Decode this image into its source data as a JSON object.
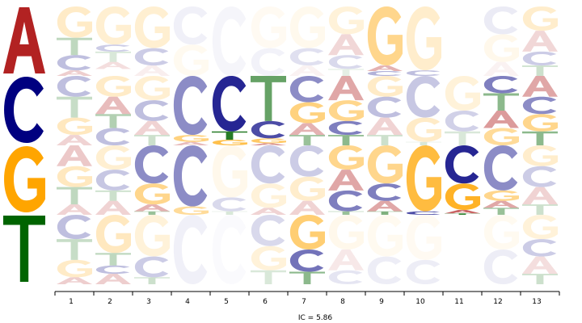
{
  "chart_data": {
    "type": "sequence-logo",
    "xlabel": "IC = 5.86",
    "alphabet": [
      "A",
      "C",
      "G",
      "T"
    ],
    "colors": {
      "A": "#b22222",
      "C": "#000080",
      "G": "#ffa500",
      "T": "#006400"
    },
    "row_letters": [
      "A",
      "C",
      "G",
      "T"
    ],
    "positions": [
      "1",
      "2",
      "3",
      "4",
      "5",
      "6",
      "7",
      "8",
      "9",
      "10",
      "11",
      "12",
      "13"
    ],
    "cells": {
      "A": [
        [
          [
            "G",
            0.45,
            0.22
          ],
          [
            "T",
            0.25,
            0.25
          ],
          [
            "C",
            0.22,
            0.25
          ],
          [
            "A",
            0.08,
            0.22
          ]
        ],
        [
          [
            "G",
            0.55,
            0.18
          ],
          [
            "C",
            0.1,
            0.2
          ],
          [
            "T",
            0.15,
            0.15
          ],
          [
            "A",
            0.1,
            0.15
          ]
        ],
        [
          [
            "G",
            0.6,
            0.18
          ],
          [
            "C",
            0.25,
            0.2
          ],
          [
            "A",
            0.15,
            0.08
          ]
        ],
        [
          [
            "C",
            0.55,
            0.06
          ],
          [
            "G",
            0.45,
            0.06
          ]
        ],
        [
          [
            "C",
            1.0,
            0.04
          ]
        ],
        [
          [
            "G",
            0.6,
            0.05
          ],
          [
            "C",
            0.4,
            0.05
          ]
        ],
        [
          [
            "G",
            0.6,
            0.07
          ],
          [
            "C",
            0.25,
            0.12
          ],
          [
            "A",
            0.15,
            0.06
          ]
        ],
        [
          [
            "G",
            0.4,
            0.15
          ],
          [
            "A",
            0.3,
            0.18
          ],
          [
            "C",
            0.2,
            0.15
          ],
          [
            "T",
            0.1,
            0.1
          ]
        ],
        [
          [
            "G",
            0.85,
            0.45
          ],
          [
            "A",
            0.08,
            0.35
          ],
          [
            "C",
            0.07,
            0.3
          ]
        ],
        [
          [
            "G",
            0.92,
            0.2
          ],
          [
            "C",
            0.08,
            0.25
          ]
        ],
        [],
        [
          [
            "C",
            0.4,
            0.08
          ],
          [
            "G",
            0.4,
            0.08
          ],
          [
            "A",
            0.2,
            0.06
          ]
        ],
        [
          [
            "G",
            0.35,
            0.2
          ],
          [
            "A",
            0.3,
            0.18
          ],
          [
            "C",
            0.2,
            0.2
          ],
          [
            "T",
            0.15,
            0.2
          ]
        ]
      ],
      "C": [
        [
          [
            "C",
            0.3,
            0.25
          ],
          [
            "T",
            0.3,
            0.22
          ],
          [
            "G",
            0.25,
            0.25
          ],
          [
            "A",
            0.15,
            0.2
          ]
        ],
        [
          [
            "G",
            0.3,
            0.22
          ],
          [
            "A",
            0.25,
            0.3
          ],
          [
            "T",
            0.2,
            0.3
          ],
          [
            "C",
            0.25,
            0.25
          ]
        ],
        [
          [
            "G",
            0.35,
            0.18
          ],
          [
            "C",
            0.3,
            0.25
          ],
          [
            "A",
            0.2,
            0.2
          ],
          [
            "T",
            0.15,
            0.2
          ]
        ],
        [
          [
            "C",
            0.85,
            0.45
          ],
          [
            "G",
            0.1,
            0.5
          ],
          [
            "A",
            0.05,
            0.3
          ]
        ],
        [
          [
            "C",
            0.8,
            0.85
          ],
          [
            "T",
            0.12,
            0.85
          ],
          [
            "G",
            0.08,
            0.7
          ]
        ],
        [
          [
            "T",
            0.65,
            0.6
          ],
          [
            "C",
            0.25,
            0.7
          ],
          [
            "G",
            0.07,
            0.6
          ],
          [
            "A",
            0.03,
            0.5
          ]
        ],
        [
          [
            "C",
            0.38,
            0.45
          ],
          [
            "G",
            0.3,
            0.5
          ],
          [
            "A",
            0.17,
            0.35
          ],
          [
            "T",
            0.15,
            0.4
          ]
        ],
        [
          [
            "A",
            0.35,
            0.4
          ],
          [
            "G",
            0.3,
            0.45
          ],
          [
            "C",
            0.2,
            0.5
          ],
          [
            "T",
            0.15,
            0.45
          ]
        ],
        [
          [
            "G",
            0.3,
            0.22
          ],
          [
            "C",
            0.3,
            0.25
          ],
          [
            "A",
            0.25,
            0.2
          ],
          [
            "T",
            0.15,
            0.2
          ]
        ],
        [
          [
            "C",
            0.6,
            0.22
          ],
          [
            "G",
            0.35,
            0.22
          ],
          [
            "T",
            0.05,
            0.15
          ]
        ],
        [
          [
            "G",
            0.5,
            0.15
          ],
          [
            "C",
            0.3,
            0.18
          ],
          [
            "T",
            0.2,
            0.15
          ]
        ],
        [
          [
            "C",
            0.25,
            0.5
          ],
          [
            "T",
            0.25,
            0.45
          ],
          [
            "A",
            0.25,
            0.45
          ],
          [
            "G",
            0.25,
            0.4
          ]
        ],
        [
          [
            "A",
            0.3,
            0.4
          ],
          [
            "C",
            0.25,
            0.45
          ],
          [
            "G",
            0.25,
            0.45
          ],
          [
            "T",
            0.2,
            0.45
          ]
        ]
      ],
      "G": [
        [
          [
            "A",
            0.3,
            0.25
          ],
          [
            "G",
            0.3,
            0.25
          ],
          [
            "T",
            0.25,
            0.25
          ],
          [
            "A",
            0.15,
            0.2
          ]
        ],
        [
          [
            "G",
            0.35,
            0.18
          ],
          [
            "C",
            0.3,
            0.22
          ],
          [
            "T",
            0.15,
            0.2
          ],
          [
            "A",
            0.2,
            0.2
          ]
        ],
        [
          [
            "C",
            0.55,
            0.45
          ],
          [
            "G",
            0.3,
            0.45
          ],
          [
            "A",
            0.1,
            0.35
          ],
          [
            "T",
            0.05,
            0.4
          ]
        ],
        [
          [
            "C",
            0.88,
            0.45
          ],
          [
            "G",
            0.12,
            0.4
          ]
        ],
        [
          [
            "G",
            0.75,
            0.08
          ],
          [
            "C",
            0.2,
            0.15
          ],
          [
            "T",
            0.05,
            0.15
          ]
        ],
        [
          [
            "C",
            0.55,
            0.2
          ],
          [
            "G",
            0.35,
            0.15
          ],
          [
            "A",
            0.1,
            0.2
          ]
        ],
        [
          [
            "C",
            0.45,
            0.2
          ],
          [
            "G",
            0.35,
            0.2
          ],
          [
            "A",
            0.2,
            0.2
          ]
        ],
        [
          [
            "G",
            0.35,
            0.45
          ],
          [
            "A",
            0.3,
            0.4
          ],
          [
            "C",
            0.3,
            0.5
          ],
          [
            "T",
            0.05,
            0.4
          ]
        ],
        [
          [
            "G",
            0.55,
            0.45
          ],
          [
            "C",
            0.25,
            0.5
          ],
          [
            "A",
            0.15,
            0.4
          ],
          [
            "T",
            0.05,
            0.5
          ]
        ],
        [
          [
            "G",
            0.95,
            0.75
          ],
          [
            "C",
            0.05,
            0.7
          ]
        ],
        [
          [
            "C",
            0.55,
            0.85
          ],
          [
            "G",
            0.38,
            0.85
          ],
          [
            "A",
            0.05,
            0.7
          ],
          [
            "T",
            0.02,
            0.8
          ]
        ],
        [
          [
            "C",
            0.65,
            0.45
          ],
          [
            "G",
            0.15,
            0.45
          ],
          [
            "A",
            0.1,
            0.4
          ],
          [
            "T",
            0.1,
            0.4
          ]
        ],
        [
          [
            "G",
            0.3,
            0.2
          ],
          [
            "C",
            0.3,
            0.2
          ],
          [
            "A",
            0.25,
            0.2
          ],
          [
            "T",
            0.15,
            0.2
          ]
        ]
      ],
      "T": [
        [
          [
            "C",
            0.35,
            0.25
          ],
          [
            "T",
            0.3,
            0.22
          ],
          [
            "G",
            0.25,
            0.22
          ],
          [
            "A",
            0.1,
            0.22
          ]
        ],
        [
          [
            "G",
            0.55,
            0.25
          ],
          [
            "T",
            0.18,
            0.25
          ],
          [
            "C",
            0.12,
            0.25
          ],
          [
            "A",
            0.15,
            0.22
          ]
        ],
        [
          [
            "G",
            0.6,
            0.15
          ],
          [
            "C",
            0.3,
            0.2
          ],
          [
            "T",
            0.1,
            0.2
          ]
        ],
        [
          [
            "C",
            1.0,
            0.06
          ]
        ],
        [
          [
            "C",
            1.0,
            0.02
          ]
        ],
        [
          [
            "C",
            0.45,
            0.15
          ],
          [
            "G",
            0.35,
            0.15
          ],
          [
            "T",
            0.2,
            0.15
          ]
        ],
        [
          [
            "G",
            0.5,
            0.55
          ],
          [
            "C",
            0.32,
            0.55
          ],
          [
            "T",
            0.18,
            0.45
          ]
        ],
        [
          [
            "G",
            0.5,
            0.08
          ],
          [
            "A",
            0.3,
            0.1
          ],
          [
            "C",
            0.2,
            0.1
          ]
        ],
        [
          [
            "G",
            0.6,
            0.06
          ],
          [
            "C",
            0.4,
            0.07
          ]
        ],
        [
          [
            "G",
            0.65,
            0.05
          ],
          [
            "C",
            0.35,
            0.07
          ]
        ],
        [],
        [
          [
            "G",
            0.5,
            0.06
          ],
          [
            "C",
            0.5,
            0.07
          ]
        ],
        [
          [
            "G",
            0.35,
            0.15
          ],
          [
            "C",
            0.25,
            0.2
          ],
          [
            "A",
            0.25,
            0.15
          ],
          [
            "T",
            0.15,
            0.2
          ]
        ]
      ]
    }
  }
}
